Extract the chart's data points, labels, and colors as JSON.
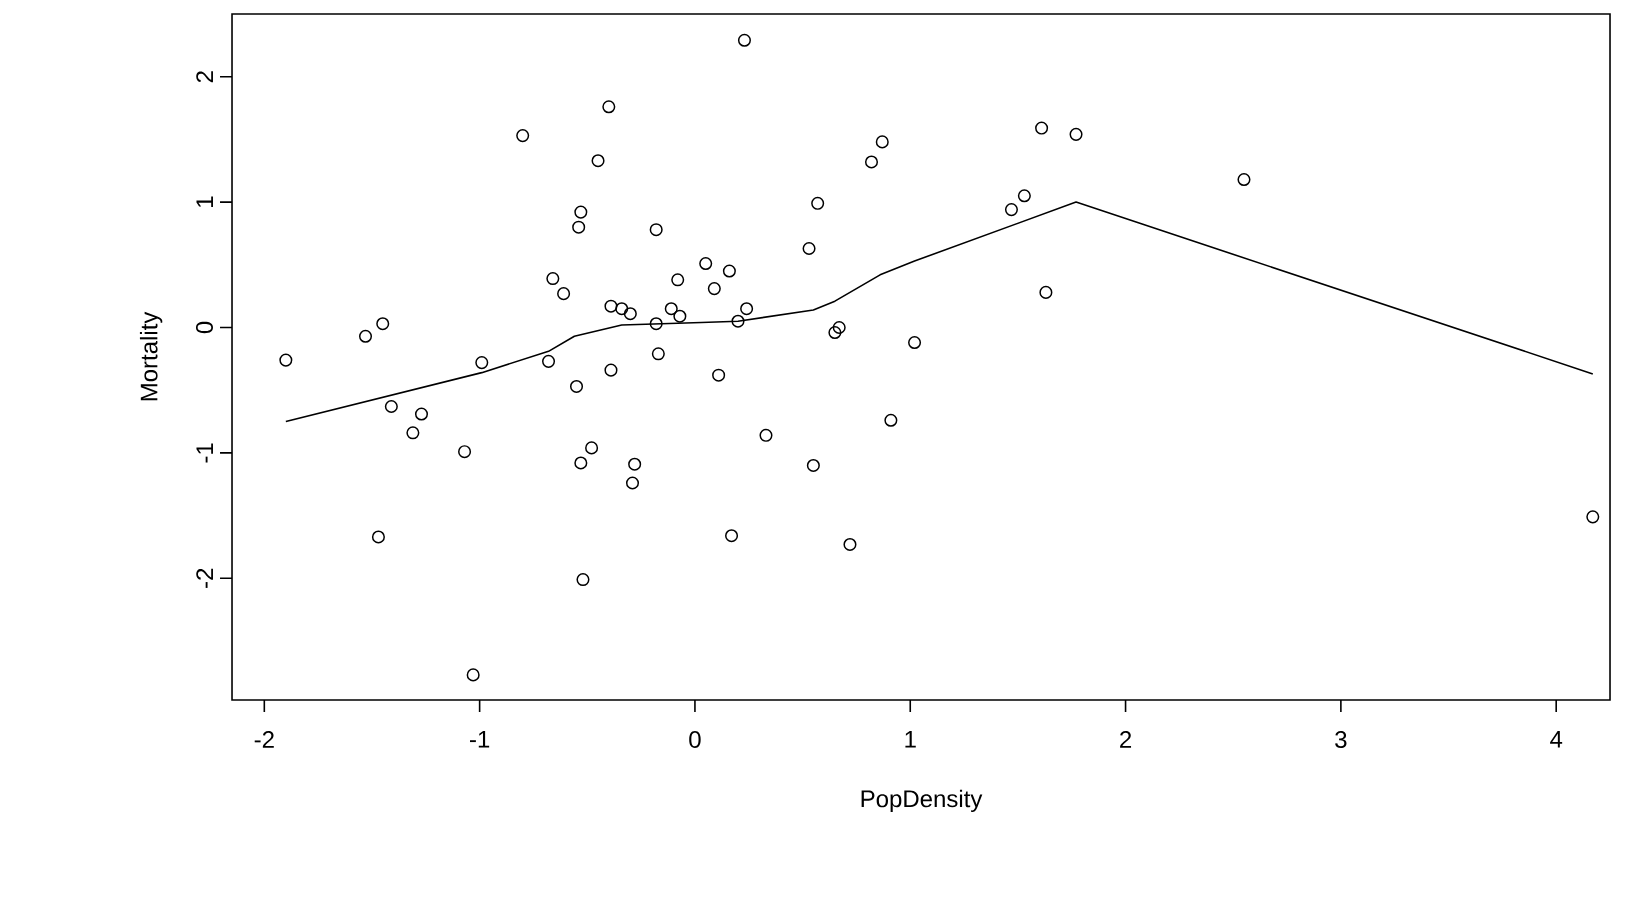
{
  "chart_data": {
    "type": "scatter",
    "xlabel": "PopDensity",
    "ylabel": "Mortality",
    "xlim": [
      -2.15,
      4.25
    ],
    "ylim": [
      -2.97,
      2.5
    ],
    "xticks": [
      -2,
      -1,
      0,
      1,
      2,
      3,
      4
    ],
    "yticks": [
      -2,
      -1,
      0,
      1,
      2
    ],
    "grid": false,
    "series": [
      {
        "marker": "circle",
        "color": "#000000",
        "x": [
          -1.9,
          -1.53,
          -1.45,
          -1.41,
          -1.27,
          -1.31,
          -1.47,
          -1.07,
          -0.99,
          -1.03,
          -0.8,
          -0.4,
          -0.45,
          -0.53,
          -0.54,
          -0.18,
          -0.66,
          -0.61,
          -0.39,
          -0.34,
          -0.3,
          -0.18,
          -0.11,
          -0.07,
          -0.08,
          0.05,
          0.09,
          -0.68,
          -0.55,
          -0.39,
          -0.17,
          0.11,
          -0.48,
          -0.53,
          -0.28,
          -0.29,
          -0.52,
          0.23,
          0.16,
          0.24,
          0.2,
          0.33,
          0.17,
          0.55,
          0.72,
          0.91,
          1.02,
          0.65,
          0.67,
          0.53,
          0.57,
          0.82,
          0.87,
          1.47,
          1.53,
          1.61,
          1.77,
          1.63,
          2.55,
          4.17
        ],
        "values": [
          -0.26,
          -0.07,
          0.03,
          -0.63,
          -0.69,
          -0.84,
          -1.67,
          -0.99,
          -0.28,
          -2.77,
          1.53,
          1.76,
          1.33,
          0.92,
          0.8,
          0.78,
          0.39,
          0.27,
          0.17,
          0.15,
          0.11,
          0.03,
          0.15,
          0.09,
          0.38,
          0.51,
          0.31,
          -0.27,
          -0.47,
          -0.34,
          -0.21,
          -0.38,
          -0.96,
          -1.08,
          -1.09,
          -1.24,
          -2.01,
          2.29,
          0.45,
          0.15,
          0.05,
          -0.86,
          -1.66,
          -1.1,
          -1.73,
          -0.74,
          -0.12,
          -0.04,
          0.0,
          0.63,
          0.99,
          1.32,
          1.48,
          0.94,
          1.05,
          1.59,
          1.54,
          0.28,
          1.18,
          -1.51
        ]
      },
      {
        "type": "line",
        "marker": "none",
        "color": "#000000",
        "x": [
          -1.9,
          -0.99,
          -0.68,
          -0.56,
          -0.34,
          0.03,
          0.2,
          0.55,
          0.65,
          0.86,
          1.02,
          1.77,
          4.17
        ],
        "values": [
          -0.75,
          -0.36,
          -0.19,
          -0.07,
          0.02,
          0.04,
          0.05,
          0.14,
          0.21,
          0.42,
          0.53,
          1.0,
          -0.37
        ]
      }
    ]
  }
}
